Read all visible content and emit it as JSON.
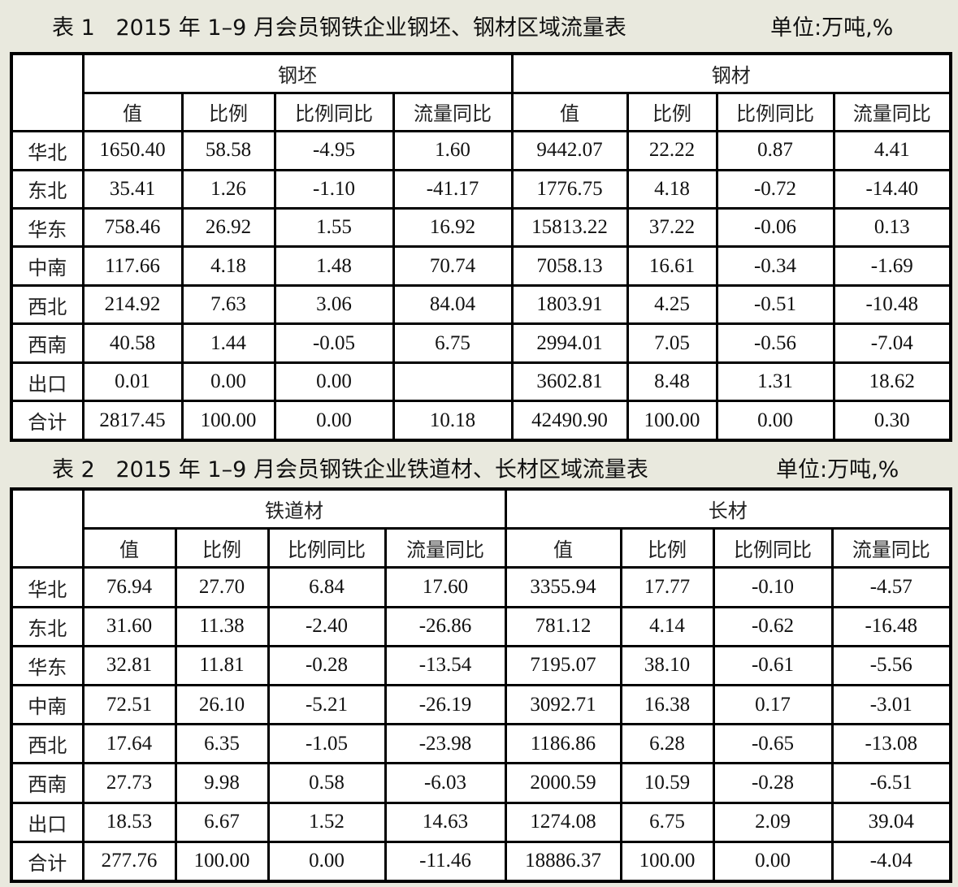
{
  "tables": [
    {
      "title": "表 1   2015 年 1–9 月会员钢铁企业钢坯、钢材区域流量表",
      "unit": "单位:万吨,%",
      "groups": [
        "钢坯",
        "钢材"
      ],
      "subheaders": [
        "值",
        "比例",
        "比例同比",
        "流量同比",
        "值",
        "比例",
        "比例同比",
        "流量同比"
      ],
      "rows": [
        {
          "region": "华北",
          "cells": [
            "1650.40",
            "58.58",
            "-4.95",
            "1.60",
            "9442.07",
            "22.22",
            "0.87",
            "4.41"
          ]
        },
        {
          "region": "东北",
          "cells": [
            "35.41",
            "1.26",
            "-1.10",
            "-41.17",
            "1776.75",
            "4.18",
            "-0.72",
            "-14.40"
          ]
        },
        {
          "region": "华东",
          "cells": [
            "758.46",
            "26.92",
            "1.55",
            "16.92",
            "15813.22",
            "37.22",
            "-0.06",
            "0.13"
          ]
        },
        {
          "region": "中南",
          "cells": [
            "117.66",
            "4.18",
            "1.48",
            "70.74",
            "7058.13",
            "16.61",
            "-0.34",
            "-1.69"
          ]
        },
        {
          "region": "西北",
          "cells": [
            "214.92",
            "7.63",
            "3.06",
            "84.04",
            "1803.91",
            "4.25",
            "-0.51",
            "-10.48"
          ]
        },
        {
          "region": "西南",
          "cells": [
            "40.58",
            "1.44",
            "-0.05",
            "6.75",
            "2994.01",
            "7.05",
            "-0.56",
            "-7.04"
          ]
        },
        {
          "region": "出口",
          "cells": [
            "0.01",
            "0.00",
            "0.00",
            "",
            "3602.81",
            "8.48",
            "1.31",
            "18.62"
          ]
        },
        {
          "region": "合计",
          "cells": [
            "2817.45",
            "100.00",
            "0.00",
            "10.18",
            "42490.90",
            "100.00",
            "0.00",
            "0.30"
          ]
        }
      ]
    },
    {
      "title": "表 2   2015 年 1–9 月会员钢铁企业铁道材、长材区域流量表",
      "unit": "单位:万吨,%",
      "groups": [
        "铁道材",
        "长材"
      ],
      "subheaders": [
        "值",
        "比例",
        "比例同比",
        "流量同比",
        "值",
        "比例",
        "比例同比",
        "流量同比"
      ],
      "rows": [
        {
          "region": "华北",
          "cells": [
            "76.94",
            "27.70",
            "6.84",
            "17.60",
            "3355.94",
            "17.77",
            "-0.10",
            "-4.57"
          ]
        },
        {
          "region": "东北",
          "cells": [
            "31.60",
            "11.38",
            "-2.40",
            "-26.86",
            "781.12",
            "4.14",
            "-0.62",
            "-16.48"
          ]
        },
        {
          "region": "华东",
          "cells": [
            "32.81",
            "11.81",
            "-0.28",
            "-13.54",
            "7195.07",
            "38.10",
            "-0.61",
            "-5.56"
          ]
        },
        {
          "region": "中南",
          "cells": [
            "72.51",
            "26.10",
            "-5.21",
            "-26.19",
            "3092.71",
            "16.38",
            "0.17",
            "-3.01"
          ]
        },
        {
          "region": "西北",
          "cells": [
            "17.64",
            "6.35",
            "-1.05",
            "-23.98",
            "1186.86",
            "6.28",
            "-0.65",
            "-13.08"
          ]
        },
        {
          "region": "西南",
          "cells": [
            "27.73",
            "9.98",
            "0.58",
            "-6.03",
            "2000.59",
            "10.59",
            "-0.28",
            "-6.51"
          ]
        },
        {
          "region": "出口",
          "cells": [
            "18.53",
            "6.67",
            "1.52",
            "14.63",
            "1274.08",
            "6.75",
            "2.09",
            "39.04"
          ]
        },
        {
          "region": "合计",
          "cells": [
            "277.76",
            "100.00",
            "0.00",
            "-11.46",
            "18886.37",
            "100.00",
            "0.00",
            "-4.04"
          ]
        }
      ]
    }
  ]
}
